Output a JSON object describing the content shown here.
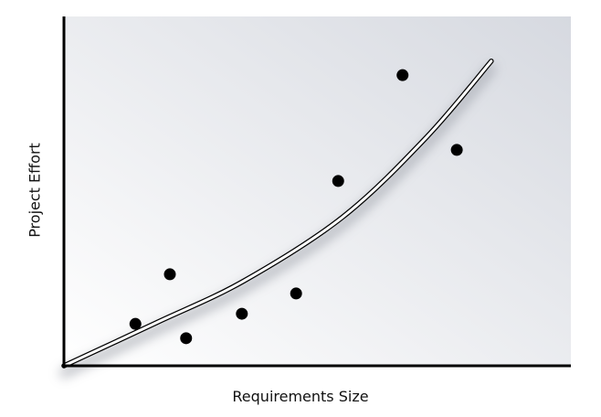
{
  "chart_data": {
    "type": "scatter",
    "title": "",
    "xlabel": "Requirements Size",
    "ylabel": "Project Effort",
    "xlim": [
      0,
      100
    ],
    "ylim": [
      0,
      100
    ],
    "grid": false,
    "ticks": false,
    "points": {
      "x": [
        14.1,
        20.9,
        24.1,
        35.1,
        45.8,
        54.1,
        66.8,
        77.5
      ],
      "y": [
        12.0,
        26.2,
        7.9,
        14.9,
        20.7,
        52.9,
        83.2,
        61.8
      ]
    },
    "trend_curve": {
      "x": [
        0,
        18.2,
        35.5,
        55.0,
        71.5,
        84.3
      ],
      "y": [
        0,
        12.3,
        24.3,
        42.6,
        65.4,
        87.2
      ]
    },
    "colors": {
      "points": "#000000",
      "curve": "#ffffff",
      "curve_outline": "#000000",
      "background_light": "#ffffff",
      "background_dark": "#d6d9e0"
    }
  }
}
